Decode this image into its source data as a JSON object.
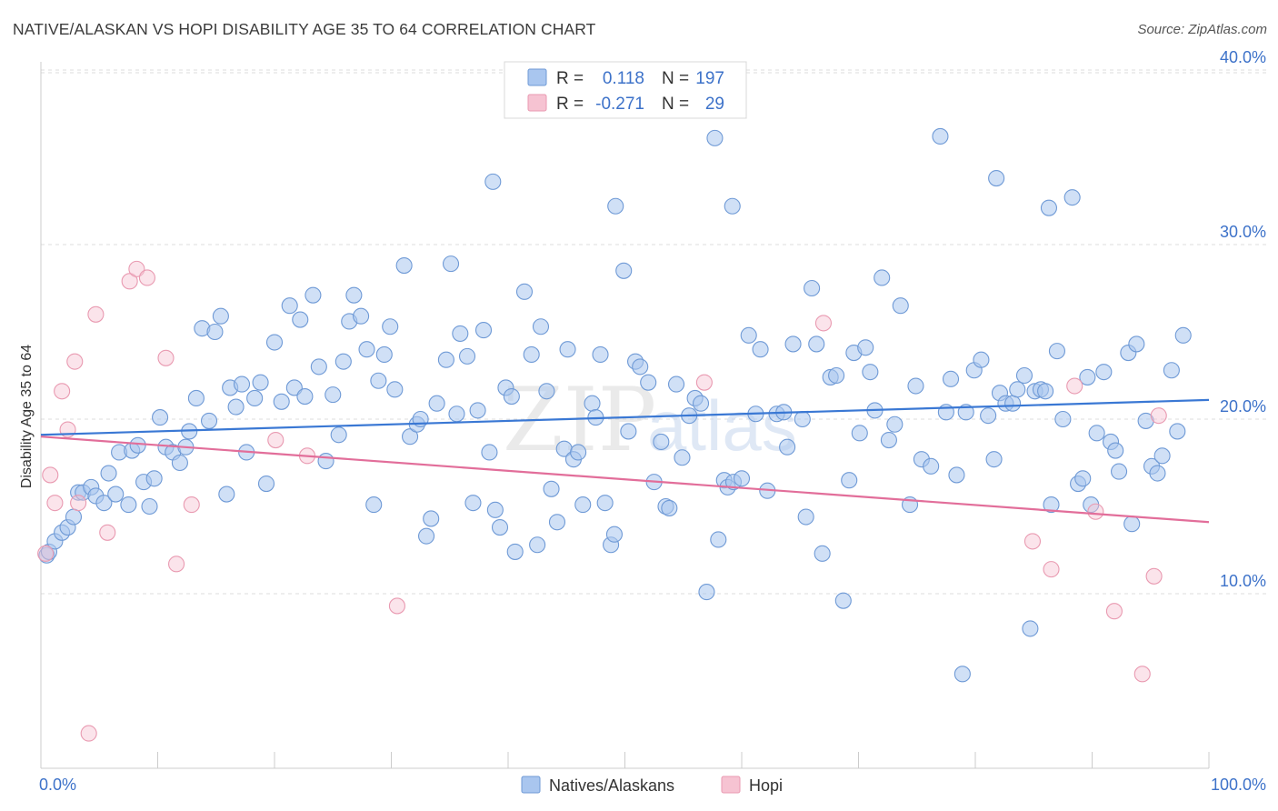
{
  "title": "NATIVE/ALASKAN VS HOPI DISABILITY AGE 35 TO 64 CORRELATION CHART",
  "source": "Source: ZipAtlas.com",
  "watermark": {
    "zip": "ZIP",
    "atlas": "atlas"
  },
  "legend_top": {
    "r_label": "R =",
    "n_label": "N =",
    "rows": [
      {
        "series": "Natives/Alaskans",
        "r": "0.118",
        "n": "197"
      },
      {
        "series": "Hopi",
        "r": "-0.271",
        "n": "29"
      }
    ]
  },
  "legend_bottom": [
    "Natives/Alaskans",
    "Hopi"
  ],
  "colors": {
    "blue_fill": "#a9c6ef",
    "blue_stroke": "#6f9ad6",
    "blue_line": "#3a78d4",
    "pink_fill": "#f6c3d2",
    "pink_stroke": "#e99ab1",
    "pink_line": "#e26e9a",
    "tick": "#3d72c9",
    "grid": "#dddddd"
  },
  "chart_data": {
    "type": "scatter",
    "title": "NATIVE/ALASKAN VS HOPI DISABILITY AGE 35 TO 64 CORRELATION CHART",
    "xlabel": "",
    "ylabel": "Disability Age 35 to 64",
    "xlim": [
      0,
      100
    ],
    "ylim": [
      0,
      40
    ],
    "x_tick_labels": [
      "0.0%",
      "100.0%"
    ],
    "y_ticks": [
      10,
      20,
      30,
      40
    ],
    "y_tick_labels": [
      "10.0%",
      "20.0%",
      "30.0%",
      "40.0%"
    ],
    "grid": "horizontal dashed",
    "legend_placement": "top-center and bottom-center",
    "series": [
      {
        "name": "Natives/Alaskans",
        "r": 0.118,
        "n": 197,
        "trend": {
          "x": [
            0,
            100
          ],
          "y": [
            19.1,
            21.1
          ]
        },
        "points": [
          [
            0.5,
            12.2
          ],
          [
            0.7,
            12.4
          ],
          [
            1.2,
            13.0
          ],
          [
            1.8,
            13.5
          ],
          [
            2.3,
            13.8
          ],
          [
            2.8,
            14.4
          ],
          [
            3.2,
            15.8
          ],
          [
            3.6,
            15.8
          ],
          [
            4.3,
            16.1
          ],
          [
            4.7,
            15.6
          ],
          [
            5.4,
            15.2
          ],
          [
            5.8,
            16.9
          ],
          [
            6.4,
            15.7
          ],
          [
            6.7,
            18.1
          ],
          [
            7.5,
            15.1
          ],
          [
            7.8,
            18.2
          ],
          [
            8.3,
            18.5
          ],
          [
            8.8,
            16.4
          ],
          [
            9.3,
            15.0
          ],
          [
            9.7,
            16.6
          ],
          [
            10.2,
            20.1
          ],
          [
            10.7,
            18.4
          ],
          [
            11.3,
            18.1
          ],
          [
            11.9,
            17.5
          ],
          [
            12.4,
            18.4
          ],
          [
            12.7,
            19.3
          ],
          [
            13.3,
            21.2
          ],
          [
            13.8,
            25.2
          ],
          [
            14.4,
            19.9
          ],
          [
            14.9,
            25.0
          ],
          [
            15.4,
            25.9
          ],
          [
            15.9,
            15.7
          ],
          [
            16.2,
            21.8
          ],
          [
            16.7,
            20.7
          ],
          [
            17.2,
            22.0
          ],
          [
            17.6,
            18.1
          ],
          [
            18.3,
            21.2
          ],
          [
            18.8,
            22.1
          ],
          [
            19.3,
            16.3
          ],
          [
            20.0,
            24.4
          ],
          [
            20.6,
            21.0
          ],
          [
            21.3,
            26.5
          ],
          [
            21.7,
            21.8
          ],
          [
            22.2,
            25.7
          ],
          [
            22.6,
            21.3
          ],
          [
            23.3,
            27.1
          ],
          [
            23.8,
            23.0
          ],
          [
            24.4,
            17.6
          ],
          [
            25.0,
            21.4
          ],
          [
            25.5,
            19.1
          ],
          [
            25.9,
            23.3
          ],
          [
            26.4,
            25.6
          ],
          [
            26.8,
            27.1
          ],
          [
            27.4,
            25.9
          ],
          [
            27.9,
            24.0
          ],
          [
            28.5,
            15.1
          ],
          [
            28.9,
            22.2
          ],
          [
            29.4,
            23.7
          ],
          [
            29.9,
            25.3
          ],
          [
            30.3,
            21.7
          ],
          [
            31.1,
            28.8
          ],
          [
            31.6,
            19.0
          ],
          [
            32.2,
            19.7
          ],
          [
            32.5,
            20.0
          ],
          [
            33.0,
            13.3
          ],
          [
            33.4,
            14.3
          ],
          [
            33.9,
            20.9
          ],
          [
            34.7,
            23.4
          ],
          [
            35.1,
            28.9
          ],
          [
            35.6,
            20.3
          ],
          [
            35.9,
            24.9
          ],
          [
            36.5,
            23.6
          ],
          [
            37.0,
            15.2
          ],
          [
            37.4,
            20.5
          ],
          [
            37.9,
            25.1
          ],
          [
            38.4,
            18.1
          ],
          [
            38.9,
            14.8
          ],
          [
            39.3,
            13.8
          ],
          [
            39.8,
            21.8
          ],
          [
            40.3,
            21.3
          ],
          [
            40.6,
            12.4
          ],
          [
            41.4,
            27.3
          ],
          [
            42.0,
            23.7
          ],
          [
            42.5,
            12.8
          ],
          [
            42.8,
            25.3
          ],
          [
            43.3,
            21.6
          ],
          [
            43.7,
            16.0
          ],
          [
            44.2,
            14.1
          ],
          [
            44.8,
            18.3
          ],
          [
            45.1,
            24.0
          ],
          [
            45.6,
            17.7
          ],
          [
            46.0,
            18.1
          ],
          [
            46.4,
            15.1
          ],
          [
            47.2,
            20.9
          ],
          [
            47.5,
            20.1
          ],
          [
            47.9,
            23.7
          ],
          [
            48.3,
            15.2
          ],
          [
            48.8,
            12.8
          ],
          [
            49.1,
            13.4
          ],
          [
            49.9,
            28.5
          ],
          [
            50.3,
            19.3
          ],
          [
            50.9,
            23.3
          ],
          [
            51.3,
            23.0
          ],
          [
            52.0,
            22.1
          ],
          [
            52.5,
            16.4
          ],
          [
            53.1,
            18.7
          ],
          [
            53.5,
            15.0
          ],
          [
            53.8,
            14.9
          ],
          [
            54.4,
            22.0
          ],
          [
            54.9,
            17.8
          ],
          [
            55.5,
            20.2
          ],
          [
            56.0,
            21.2
          ],
          [
            56.5,
            20.9
          ],
          [
            57.0,
            10.1
          ],
          [
            58.0,
            13.1
          ],
          [
            58.5,
            16.5
          ],
          [
            58.8,
            16.1
          ],
          [
            59.3,
            16.4
          ],
          [
            60.0,
            16.6
          ],
          [
            60.6,
            24.8
          ],
          [
            61.2,
            20.3
          ],
          [
            61.6,
            24.0
          ],
          [
            62.2,
            15.9
          ],
          [
            63.0,
            20.3
          ],
          [
            63.6,
            20.4
          ],
          [
            63.9,
            18.4
          ],
          [
            64.4,
            24.3
          ],
          [
            65.2,
            20.0
          ],
          [
            65.5,
            14.4
          ],
          [
            66.0,
            27.5
          ],
          [
            66.4,
            24.3
          ],
          [
            66.9,
            12.3
          ],
          [
            67.6,
            22.4
          ],
          [
            68.1,
            22.5
          ],
          [
            68.7,
            9.6
          ],
          [
            69.2,
            16.5
          ],
          [
            69.6,
            23.8
          ],
          [
            70.1,
            19.2
          ],
          [
            70.6,
            24.1
          ],
          [
            71.0,
            22.7
          ],
          [
            71.4,
            20.5
          ],
          [
            72.0,
            28.1
          ],
          [
            72.6,
            18.8
          ],
          [
            73.1,
            19.7
          ],
          [
            73.6,
            26.5
          ],
          [
            74.4,
            15.1
          ],
          [
            74.9,
            21.9
          ],
          [
            75.4,
            17.7
          ],
          [
            76.2,
            17.3
          ],
          [
            77.0,
            36.2
          ],
          [
            77.5,
            20.4
          ],
          [
            77.9,
            22.3
          ],
          [
            78.4,
            16.8
          ],
          [
            79.2,
            20.4
          ],
          [
            79.9,
            22.8
          ],
          [
            80.5,
            23.4
          ],
          [
            81.1,
            20.2
          ],
          [
            81.6,
            17.7
          ],
          [
            82.1,
            21.5
          ],
          [
            82.6,
            20.9
          ],
          [
            83.2,
            20.9
          ],
          [
            83.6,
            21.7
          ],
          [
            84.2,
            22.5
          ],
          [
            84.7,
            8.0
          ],
          [
            85.1,
            21.6
          ],
          [
            85.6,
            21.7
          ],
          [
            86.0,
            21.6
          ],
          [
            86.5,
            15.1
          ],
          [
            87.0,
            23.9
          ],
          [
            87.5,
            20.0
          ],
          [
            88.3,
            32.7
          ],
          [
            88.8,
            16.3
          ],
          [
            89.2,
            16.6
          ],
          [
            89.6,
            22.4
          ],
          [
            89.9,
            15.1
          ],
          [
            90.4,
            19.2
          ],
          [
            91.0,
            22.7
          ],
          [
            91.6,
            18.7
          ],
          [
            92.0,
            18.2
          ],
          [
            92.3,
            17.0
          ],
          [
            93.1,
            23.8
          ],
          [
            93.4,
            14.0
          ],
          [
            93.8,
            24.3
          ],
          [
            94.6,
            19.9
          ],
          [
            95.1,
            17.3
          ],
          [
            95.6,
            16.9
          ],
          [
            96.0,
            17.9
          ],
          [
            96.8,
            22.8
          ],
          [
            97.3,
            19.3
          ],
          [
            97.8,
            24.8
          ],
          [
            59.2,
            32.2
          ],
          [
            49.2,
            32.2
          ],
          [
            38.7,
            33.6
          ],
          [
            57.7,
            36.1
          ],
          [
            81.8,
            33.8
          ],
          [
            86.3,
            32.1
          ],
          [
            78.9,
            5.4
          ]
        ]
      },
      {
        "name": "Hopi",
        "r": -0.271,
        "n": 29,
        "trend": {
          "x": [
            0,
            100
          ],
          "y": [
            19.0,
            14.1
          ]
        },
        "points": [
          [
            0.4,
            12.3
          ],
          [
            0.8,
            16.8
          ],
          [
            1.2,
            15.2
          ],
          [
            1.8,
            21.6
          ],
          [
            2.3,
            19.4
          ],
          [
            2.9,
            23.3
          ],
          [
            3.2,
            15.2
          ],
          [
            4.1,
            2.0
          ],
          [
            4.7,
            26.0
          ],
          [
            5.7,
            13.5
          ],
          [
            7.6,
            27.9
          ],
          [
            8.2,
            28.6
          ],
          [
            9.1,
            28.1
          ],
          [
            10.7,
            23.5
          ],
          [
            11.6,
            11.7
          ],
          [
            12.9,
            15.1
          ],
          [
            20.1,
            18.8
          ],
          [
            22.8,
            17.9
          ],
          [
            30.5,
            9.3
          ],
          [
            56.8,
            22.1
          ],
          [
            67.0,
            25.5
          ],
          [
            84.9,
            13.0
          ],
          [
            86.5,
            11.4
          ],
          [
            88.5,
            21.9
          ],
          [
            90.3,
            14.7
          ],
          [
            91.9,
            9.0
          ],
          [
            94.3,
            5.4
          ],
          [
            95.3,
            11.0
          ],
          [
            95.7,
            20.2
          ]
        ]
      }
    ]
  }
}
